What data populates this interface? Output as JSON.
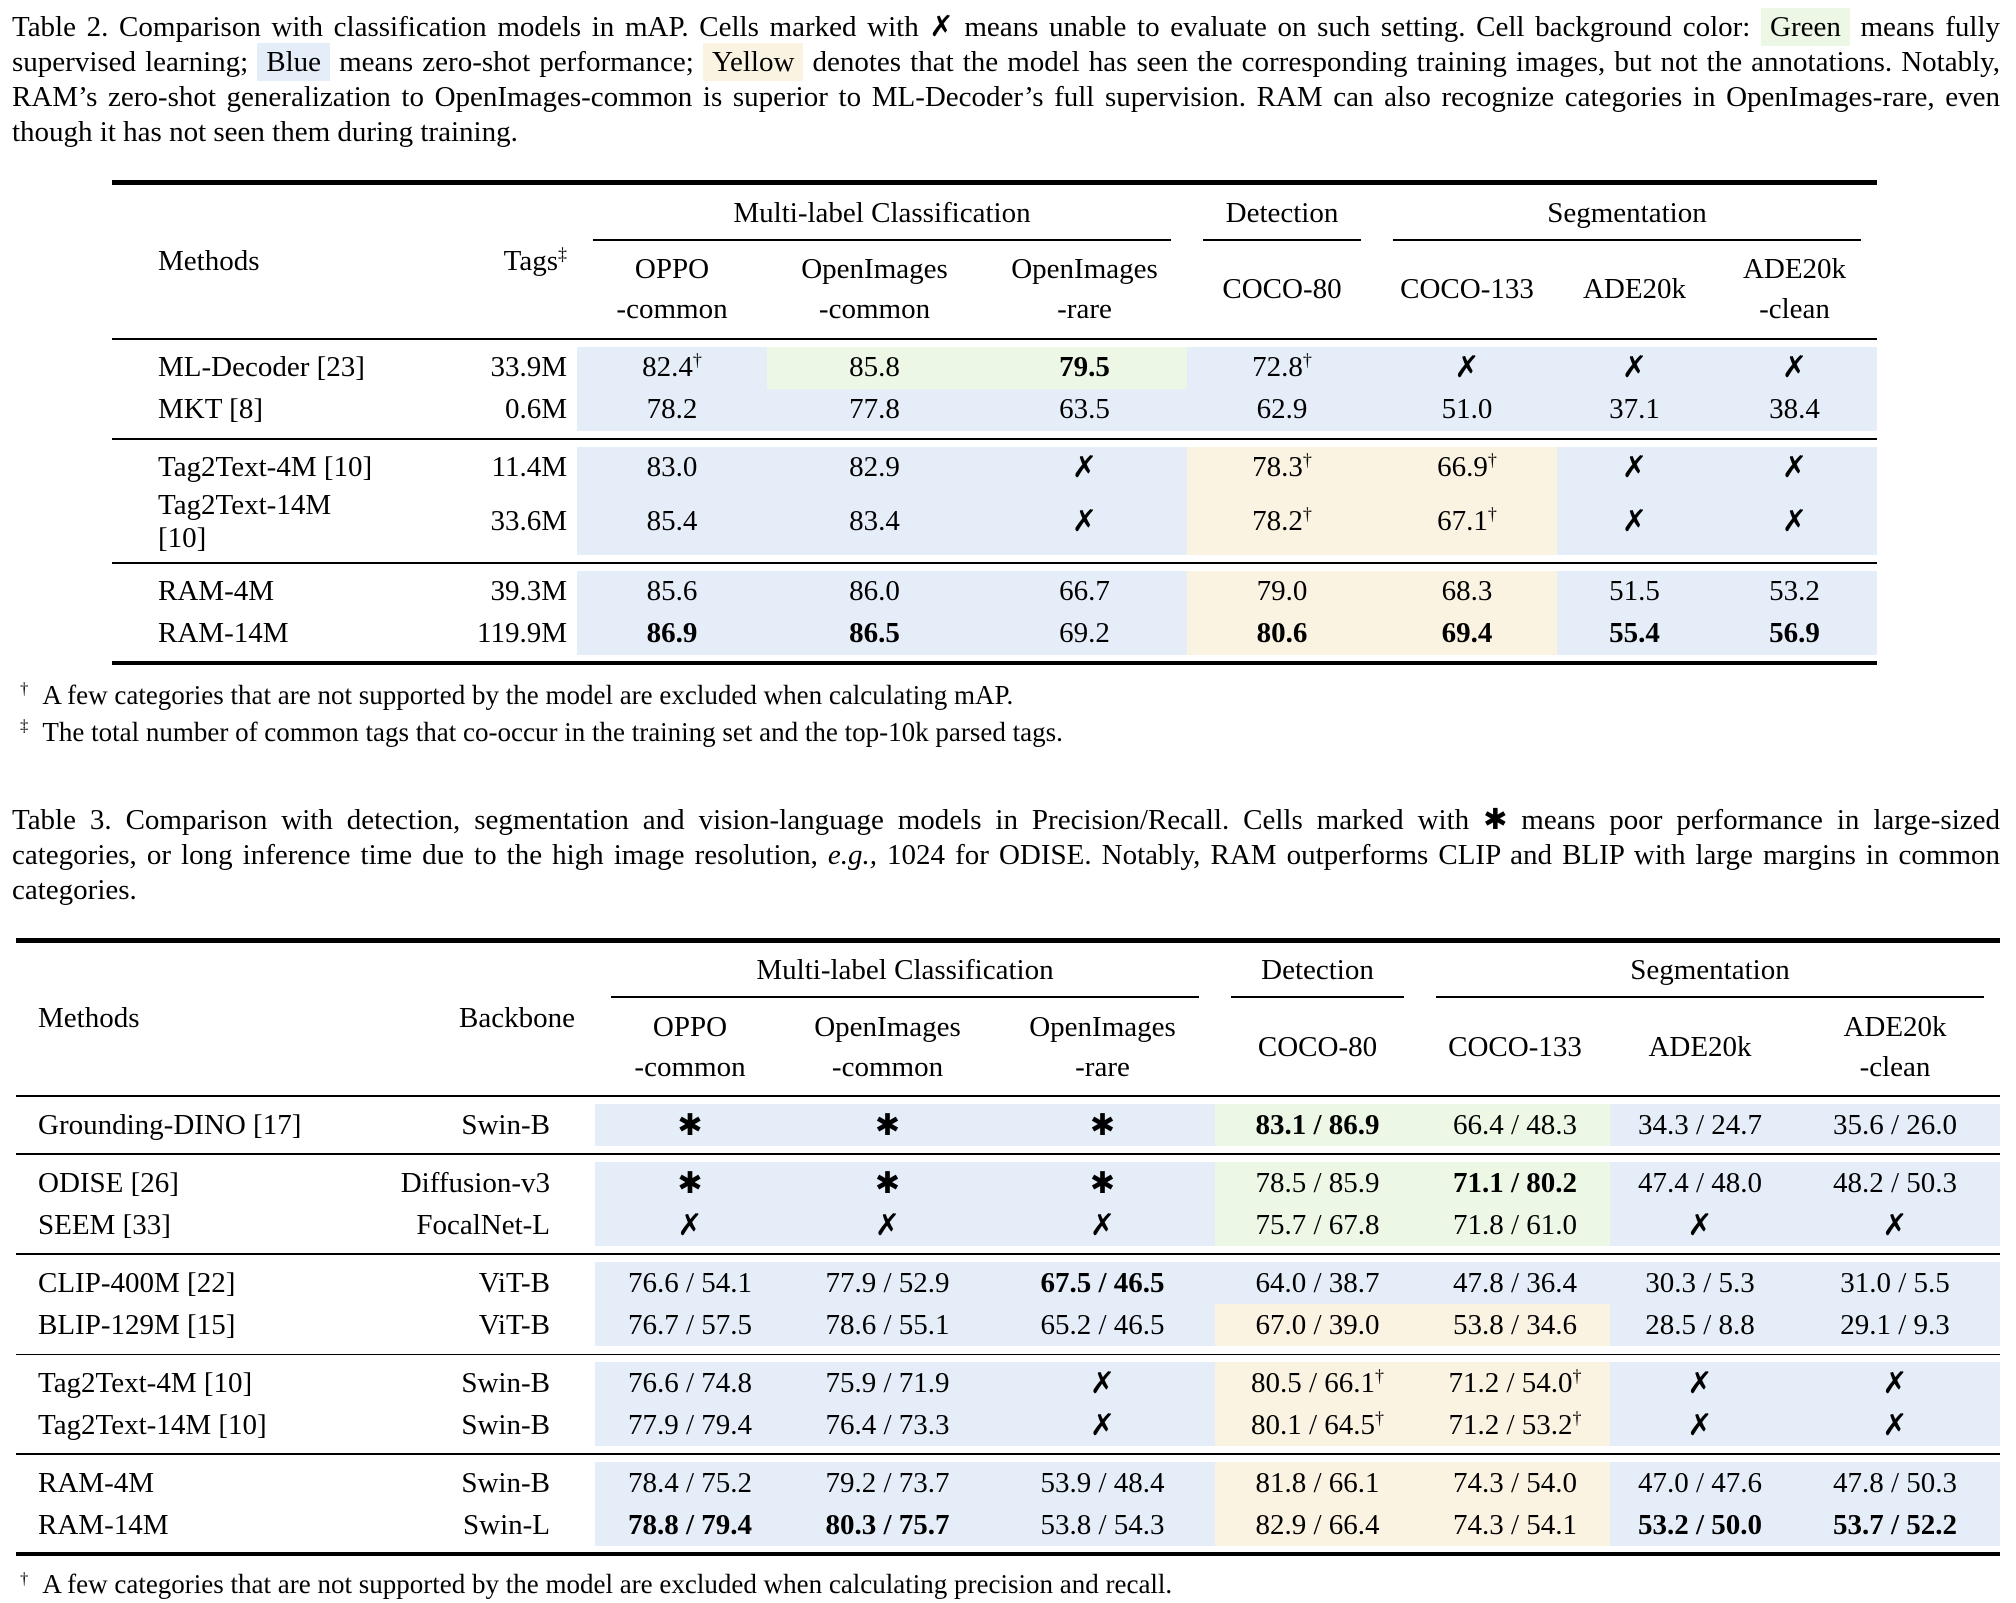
{
  "colors": {
    "green": "#ecf8e5",
    "blue": "#e5edf8",
    "yellow": "#fbf3e1"
  },
  "caption2": {
    "segments": [
      {
        "t": "Table 2. Comparison with classification models in mAP. Cells marked with "
      },
      {
        "t": "✗",
        "b": true,
        "name": "cross-mark"
      },
      {
        "t": " means unable to evaluate on such setting. Cell background color: "
      },
      {
        "t": "Green",
        "hl": "green",
        "name": "green-legend"
      },
      {
        "t": " means fully supervised learning; "
      },
      {
        "t": "Blue",
        "hl": "blue",
        "name": "blue-legend"
      },
      {
        "t": " means zero-shot performance; "
      },
      {
        "t": "Yellow",
        "hl": "yellow",
        "name": "yellow-legend"
      },
      {
        "t": " denotes that the model has seen the corresponding training images, but not the annotations.  Notably, RAM’s zero-shot generalization to OpenImages-common is superior to ML-Decoder’s full supervision. RAM can also recognize categories in OpenImages-rare, even though it has not seen them during training."
      }
    ]
  },
  "table2": {
    "header": {
      "methods": "Methods",
      "col2": [
        {
          "t": "Tags"
        },
        {
          "t": "‡",
          "sup": true
        }
      ],
      "groups": [
        "Multi-label Classification",
        "Detection",
        "Segmentation"
      ],
      "subs": [
        [
          "OPPO",
          "-common"
        ],
        [
          "OpenImages",
          "-common"
        ],
        [
          "OpenImages",
          "-rare"
        ],
        [
          "COCO-80"
        ],
        [
          "COCO-133"
        ],
        [
          "ADE20k"
        ],
        [
          "ADE20k",
          "-clean"
        ]
      ]
    },
    "groups": [
      {
        "rows": [
          {
            "method": "ML-Decoder [23]",
            "col2": "33.9M",
            "cells": [
              {
                "t": "82.4",
                "s": "†",
                "bg": "blue"
              },
              {
                "t": "85.8",
                "bg": "green"
              },
              {
                "t": "79.5",
                "b": true,
                "bg": "green"
              },
              {
                "t": "72.8",
                "s": "†",
                "bg": "blue"
              },
              {
                "t": "✗",
                "mark": true,
                "bg": "blue"
              },
              {
                "t": "✗",
                "mark": true,
                "bg": "blue"
              },
              {
                "t": "✗",
                "mark": true,
                "bg": "blue"
              }
            ]
          },
          {
            "method": "MKT [8]",
            "col2": "0.6M",
            "cells": [
              {
                "t": "78.2",
                "bg": "blue"
              },
              {
                "t": "77.8",
                "bg": "blue"
              },
              {
                "t": "63.5",
                "bg": "blue"
              },
              {
                "t": "62.9",
                "bg": "blue"
              },
              {
                "t": "51.0",
                "bg": "blue"
              },
              {
                "t": "37.1",
                "bg": "blue"
              },
              {
                "t": "38.4",
                "bg": "blue"
              }
            ]
          }
        ]
      },
      {
        "rows": [
          {
            "method": "Tag2Text-4M [10]",
            "col2": "11.4M",
            "cells": [
              {
                "t": "83.0",
                "bg": "blue"
              },
              {
                "t": "82.9",
                "bg": "blue"
              },
              {
                "t": "✗",
                "mark": true,
                "bg": "blue"
              },
              {
                "t": "78.3",
                "s": "†",
                "bg": "yellow"
              },
              {
                "t": "66.9",
                "s": "†",
                "bg": "yellow"
              },
              {
                "t": "✗",
                "mark": true,
                "bg": "blue"
              },
              {
                "t": "✗",
                "mark": true,
                "bg": "blue"
              }
            ]
          },
          {
            "method": "Tag2Text-14M [10]",
            "col2": "33.6M",
            "cells": [
              {
                "t": "85.4",
                "bg": "blue"
              },
              {
                "t": "83.4",
                "bg": "blue"
              },
              {
                "t": "✗",
                "mark": true,
                "bg": "blue"
              },
              {
                "t": "78.2",
                "s": "†",
                "bg": "yellow"
              },
              {
                "t": "67.1",
                "s": "†",
                "bg": "yellow"
              },
              {
                "t": "✗",
                "mark": true,
                "bg": "blue"
              },
              {
                "t": "✗",
                "mark": true,
                "bg": "blue"
              }
            ]
          }
        ]
      },
      {
        "rows": [
          {
            "method": "RAM-4M",
            "col2": "39.3M",
            "cells": [
              {
                "t": "85.6",
                "bg": "blue"
              },
              {
                "t": "86.0",
                "bg": "blue"
              },
              {
                "t": "66.7",
                "bg": "blue"
              },
              {
                "t": "79.0",
                "bg": "yellow"
              },
              {
                "t": "68.3",
                "bg": "yellow"
              },
              {
                "t": "51.5",
                "bg": "blue"
              },
              {
                "t": "53.2",
                "bg": "blue"
              }
            ]
          },
          {
            "method": "RAM-14M",
            "col2": "119.9M",
            "cells": [
              {
                "t": "86.9",
                "b": true,
                "bg": "blue"
              },
              {
                "t": "86.5",
                "b": true,
                "bg": "blue"
              },
              {
                "t": "69.2",
                "bg": "blue"
              },
              {
                "t": "80.6",
                "b": true,
                "bg": "yellow"
              },
              {
                "t": "69.4",
                "b": true,
                "bg": "yellow"
              },
              {
                "t": "55.4",
                "b": true,
                "bg": "blue"
              },
              {
                "t": "56.9",
                "b": true,
                "bg": "blue"
              }
            ]
          }
        ]
      }
    ],
    "footnotes": [
      {
        "m": "†",
        "t": "A few categories that are not supported by the model are excluded when calculating mAP."
      },
      {
        "m": "‡",
        "t": "The total number of common tags that co-occur in the training set and the top-10k parsed tags."
      }
    ]
  },
  "caption3": {
    "segments": [
      {
        "t": "Table 3. Comparison with detection, segmentation and vision-language models in Precision/Recall.  Cells marked with "
      },
      {
        "t": "✱",
        "b": true,
        "name": "asterisk-mark"
      },
      {
        "t": " means poor performance in large-sized categories, or long inference time due to the high image resolution, "
      },
      {
        "t": "e.g.,",
        "i": true
      },
      {
        "t": " 1024 for ODISE. Notably, RAM outperforms CLIP and BLIP with large margins in common categories."
      }
    ]
  },
  "table3": {
    "header": {
      "methods": "Methods",
      "col2": [
        {
          "t": "Backbone"
        }
      ],
      "groups": [
        "Multi-label Classification",
        "Detection",
        "Segmentation"
      ],
      "subs": [
        [
          "OPPO",
          "-common"
        ],
        [
          "OpenImages",
          "-common"
        ],
        [
          "OpenImages",
          "-rare"
        ],
        [
          "COCO-80"
        ],
        [
          "COCO-133"
        ],
        [
          "ADE20k"
        ],
        [
          "ADE20k",
          "-clean"
        ]
      ]
    },
    "groups": [
      {
        "rows": [
          {
            "method": "Grounding-DINO [17]",
            "col2": "Swin-B",
            "cells": [
              {
                "t": "✱",
                "mark": true,
                "bg": "blue"
              },
              {
                "t": "✱",
                "mark": true,
                "bg": "blue"
              },
              {
                "t": "✱",
                "mark": true,
                "bg": "blue"
              },
              {
                "t": "83.1 / 86.9",
                "b": true,
                "bg": "green"
              },
              {
                "t": "66.4 / 48.3",
                "bg": "green"
              },
              {
                "t": "34.3 / 24.7",
                "bg": "blue"
              },
              {
                "t": "35.6 / 26.0",
                "bg": "blue"
              }
            ]
          }
        ]
      },
      {
        "rows": [
          {
            "method": "ODISE [26]",
            "col2": "Diffusion-v3",
            "cells": [
              {
                "t": "✱",
                "mark": true,
                "bg": "blue"
              },
              {
                "t": "✱",
                "mark": true,
                "bg": "blue"
              },
              {
                "t": "✱",
                "mark": true,
                "bg": "blue"
              },
              {
                "t": "78.5 / 85.9",
                "bg": "green"
              },
              {
                "t": "71.1 / 80.2",
                "b": true,
                "bg": "green"
              },
              {
                "t": "47.4 / 48.0",
                "bg": "blue"
              },
              {
                "t": "48.2 / 50.3",
                "bg": "blue"
              }
            ]
          },
          {
            "method": "SEEM [33]",
            "col2": "FocalNet-L",
            "cells": [
              {
                "t": "✗",
                "mark": true,
                "bg": "blue"
              },
              {
                "t": "✗",
                "mark": true,
                "bg": "blue"
              },
              {
                "t": "✗",
                "mark": true,
                "bg": "blue"
              },
              {
                "t": "75.7 / 67.8",
                "bg": "green"
              },
              {
                "t": "71.8 / 61.0",
                "bg": "green"
              },
              {
                "t": "✗",
                "mark": true,
                "bg": "blue"
              },
              {
                "t": "✗",
                "mark": true,
                "bg": "blue"
              }
            ]
          }
        ]
      },
      {
        "rows": [
          {
            "method": "CLIP-400M [22]",
            "col2": "ViT-B",
            "cells": [
              {
                "t": "76.6 / 54.1",
                "bg": "blue"
              },
              {
                "t": "77.9 / 52.9",
                "bg": "blue"
              },
              {
                "t": "67.5 / 46.5",
                "b": true,
                "bg": "blue"
              },
              {
                "t": "64.0 / 38.7",
                "bg": "blue"
              },
              {
                "t": "47.8 / 36.4",
                "bg": "blue"
              },
              {
                "t": "30.3 / 5.3",
                "bg": "blue"
              },
              {
                "t": "31.0 / 5.5",
                "bg": "blue"
              }
            ]
          },
          {
            "method": "BLIP-129M [15]",
            "col2": "ViT-B",
            "cells": [
              {
                "t": "76.7 / 57.5",
                "bg": "blue"
              },
              {
                "t": "78.6 / 55.1",
                "bg": "blue"
              },
              {
                "t": "65.2 / 46.5",
                "bg": "blue"
              },
              {
                "t": "67.0 / 39.0",
                "bg": "yellow"
              },
              {
                "t": "53.8 / 34.6",
                "bg": "yellow"
              },
              {
                "t": "28.5 / 8.8",
                "bg": "blue"
              },
              {
                "t": "29.1 / 9.3",
                "bg": "blue"
              }
            ]
          }
        ]
      },
      {
        "thin": true,
        "rows": [
          {
            "method": "Tag2Text-4M [10]",
            "col2": "Swin-B",
            "cells": [
              {
                "t": "76.6 / 74.8",
                "bg": "blue"
              },
              {
                "t": "75.9 / 71.9",
                "bg": "blue"
              },
              {
                "t": "✗",
                "mark": true,
                "bg": "blue"
              },
              {
                "t": "80.5 / 66.1",
                "s": "†",
                "bg": "yellow"
              },
              {
                "t": "71.2 / 54.0",
                "s": "†",
                "bg": "yellow"
              },
              {
                "t": "✗",
                "mark": true,
                "bg": "blue"
              },
              {
                "t": "✗",
                "mark": true,
                "bg": "blue"
              }
            ]
          },
          {
            "method": "Tag2Text-14M [10]",
            "col2": "Swin-B",
            "cells": [
              {
                "t": "77.9 / 79.4",
                "bg": "blue"
              },
              {
                "t": "76.4 / 73.3",
                "bg": "blue"
              },
              {
                "t": "✗",
                "mark": true,
                "bg": "blue"
              },
              {
                "t": "80.1 / 64.5",
                "s": "†",
                "bg": "yellow"
              },
              {
                "t": "71.2 / 53.2",
                "s": "†",
                "bg": "yellow"
              },
              {
                "t": "✗",
                "mark": true,
                "bg": "blue"
              },
              {
                "t": "✗",
                "mark": true,
                "bg": "blue"
              }
            ]
          }
        ]
      },
      {
        "rows": [
          {
            "method": "RAM-4M",
            "col2": "Swin-B",
            "cells": [
              {
                "t": "78.4 / 75.2",
                "bg": "blue"
              },
              {
                "t": "79.2 / 73.7",
                "bg": "blue"
              },
              {
                "t": "53.9 / 48.4",
                "bg": "blue"
              },
              {
                "t": "81.8 / 66.1",
                "bg": "yellow"
              },
              {
                "t": "74.3 / 54.0",
                "bg": "yellow"
              },
              {
                "t": "47.0 / 47.6",
                "bg": "blue"
              },
              {
                "t": "47.8 / 50.3",
                "bg": "blue"
              }
            ]
          },
          {
            "method": "RAM-14M",
            "col2": "Swin-L",
            "cells": [
              {
                "t": "78.8 / 79.4",
                "b": true,
                "bg": "blue"
              },
              {
                "t": "80.3 / 75.7",
                "b": true,
                "bg": "blue"
              },
              {
                "t": "53.8 / 54.3",
                "bg": "blue"
              },
              {
                "t": "82.9 / 66.4",
                "bg": "yellow"
              },
              {
                "t": "74.3 / 54.1",
                "bg": "yellow"
              },
              {
                "t": "53.2 / 50.0",
                "b": true,
                "bg": "blue"
              },
              {
                "t": "53.7 / 52.2",
                "b": true,
                "bg": "blue"
              }
            ]
          }
        ]
      }
    ],
    "footnotes": [
      {
        "m": "†",
        "t": "A few categories that are not supported by the model are excluded when calculating precision and recall."
      }
    ]
  }
}
